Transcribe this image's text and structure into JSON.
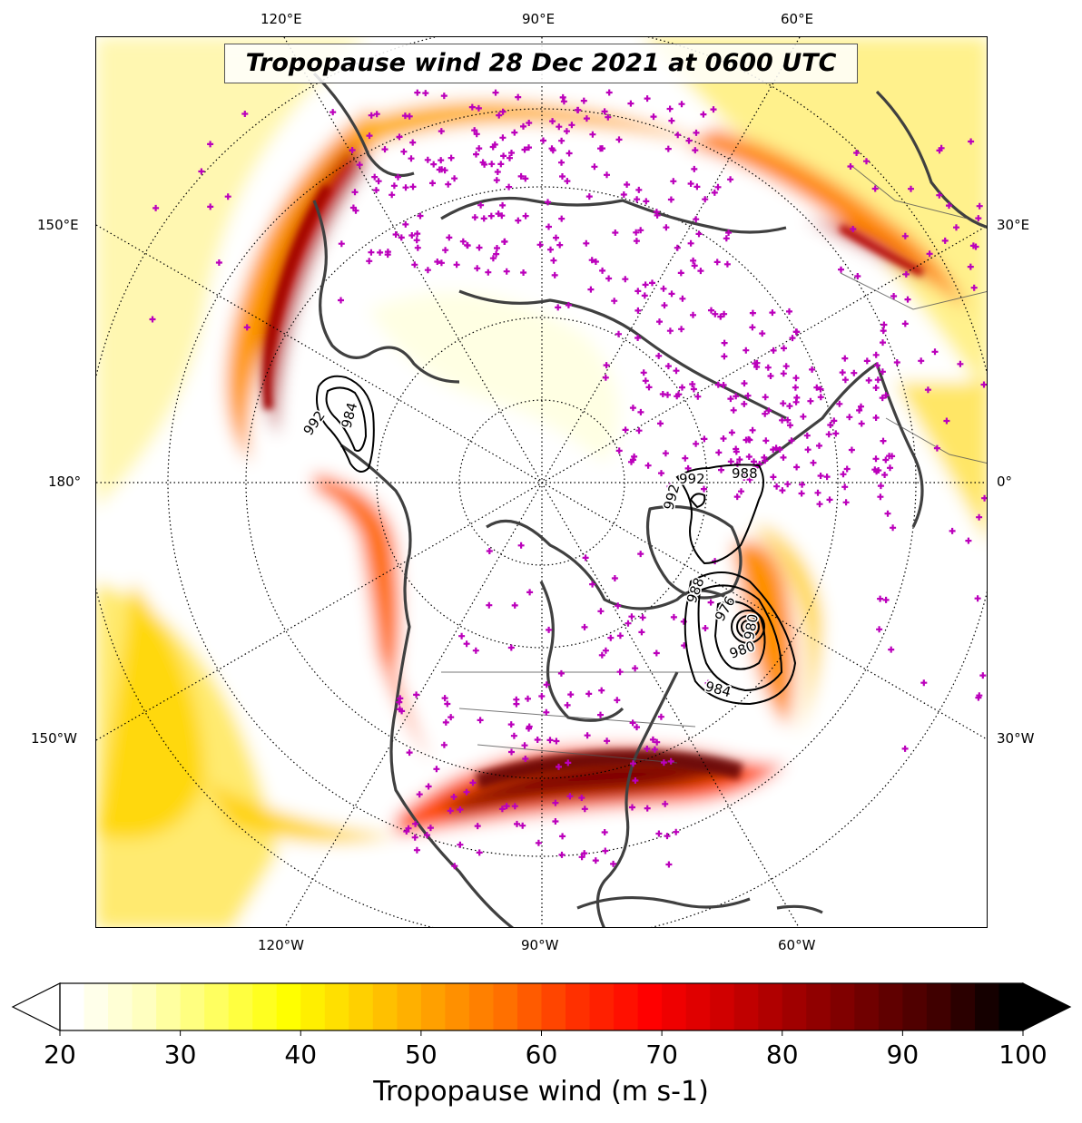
{
  "title": "Tropopause wind 28 Dec 2021 at 0600 UTC",
  "graticule_labels": {
    "top": [
      "120°E",
      "90°E",
      "60°E"
    ],
    "bottom": [
      "120°W",
      "90°W",
      "60°W"
    ],
    "left": [
      "150°E",
      "180°",
      "150°W"
    ],
    "right": [
      "30°E",
      "0°",
      "30°W"
    ]
  },
  "colorbar": {
    "label": "Tropopause wind (m s-1)",
    "min": 20,
    "max": 100,
    "ticks": [
      "20",
      "30",
      "40",
      "50",
      "60",
      "70",
      "80",
      "90",
      "100"
    ],
    "extend": "both",
    "colormap": "hot_r",
    "colors": [
      "#ffffff",
      "#ffffc0",
      "#ffff60",
      "#ffff00",
      "#ffd000",
      "#ffa000",
      "#ff7000",
      "#ff3000",
      "#ff0000",
      "#d00000",
      "#a00000",
      "#700000",
      "#400000",
      "#000000"
    ]
  },
  "pressure_contours": {
    "color": "#000000",
    "labels": [
      "992",
      "992",
      "992",
      "988",
      "988",
      "984",
      "984",
      "980",
      "980",
      "976"
    ]
  },
  "station_marker_color": "#bb00bb",
  "coastline_color": "#404040"
}
